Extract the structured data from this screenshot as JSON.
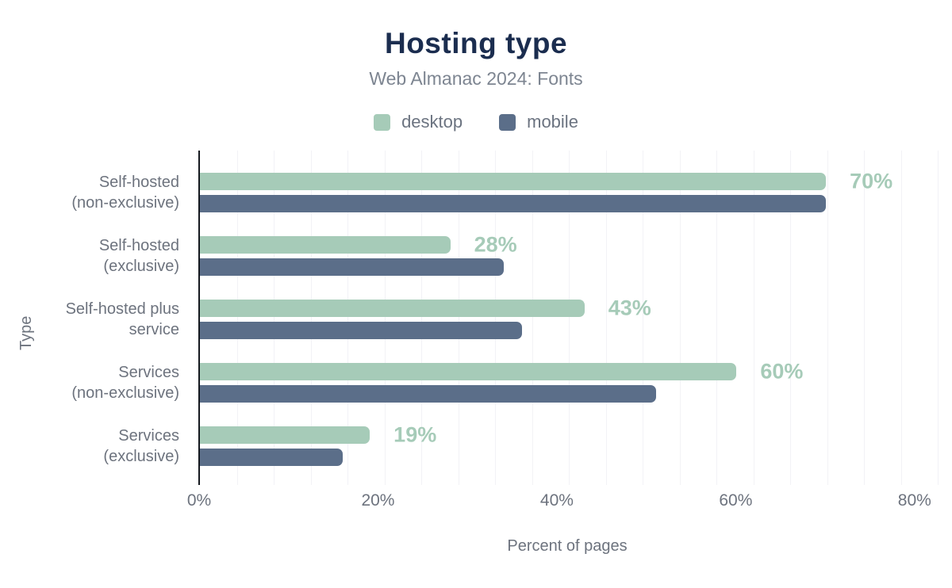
{
  "chart": {
    "title": "Hosting type",
    "subtitle": "Web Almanac 2024: Fonts",
    "xlabel": "Percent of pages",
    "ylabel": "Type"
  },
  "chart_data": {
    "type": "bar",
    "orientation": "horizontal",
    "title": "Hosting type",
    "subtitle": "Web Almanac 2024: Fonts",
    "xlabel": "Percent of pages",
    "ylabel": "Type",
    "categories": [
      [
        "Self-hosted",
        "(non-exclusive)"
      ],
      [
        "Self-hosted",
        "(exclusive)"
      ],
      [
        "Self-hosted plus",
        "service"
      ],
      [
        "Services",
        "(non-exclusive)"
      ],
      [
        "Services",
        "(exclusive)"
      ]
    ],
    "series": [
      {
        "name": "desktop",
        "color": "#a6cbb8",
        "values": [
          70,
          28,
          43,
          60,
          19
        ],
        "data_labels": [
          "70%",
          "28%",
          "43%",
          "60%",
          "19%"
        ]
      },
      {
        "name": "mobile",
        "color": "#5b6e89",
        "values": [
          70,
          34,
          36,
          51,
          16
        ],
        "data_labels": []
      }
    ],
    "xlim": [
      0,
      82.5
    ],
    "x_ticks": [
      {
        "label": "0%",
        "value": 0
      },
      {
        "label": "20%",
        "value": 20
      },
      {
        "label": "40%",
        "value": 40
      },
      {
        "label": "60%",
        "value": 60
      },
      {
        "label": "80%",
        "value": 80
      }
    ],
    "grid": "vertical-light",
    "legend_position": "top"
  },
  "colors": {
    "title": "#1b2d4f",
    "subtitle": "#7d8591",
    "axis_text": "#6d737e",
    "gridline": "#f2f2f6",
    "axis_line": "#15191f",
    "desktop": "#a6cbb8",
    "mobile": "#5b6e89"
  }
}
